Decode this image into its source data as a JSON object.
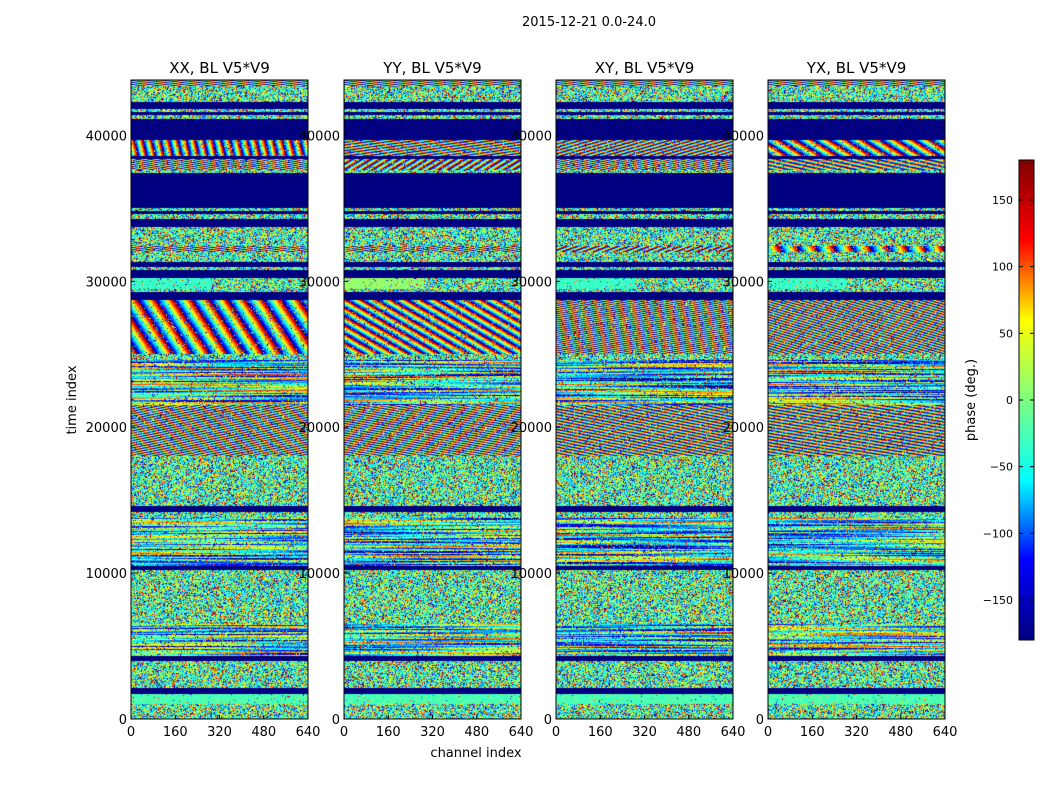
{
  "chart_data": {
    "type": "heatmap",
    "suptitle": "2015-12-21 0.0-24.0",
    "xlabel": "channel index",
    "ylabel": "time index",
    "xlim": [
      0,
      640
    ],
    "ylim": [
      0,
      43800
    ],
    "x_ticks": [
      0,
      160,
      320,
      480,
      640
    ],
    "y_ticks": [
      0,
      10000,
      20000,
      30000,
      40000
    ],
    "panels": [
      {
        "title": "XX, BL V5*V9"
      },
      {
        "title": "YY, BL V5*V9"
      },
      {
        "title": "XY, BL V5*V9"
      },
      {
        "title": "YX, BL V5*V9"
      }
    ],
    "colorbar": {
      "label": "phase (deg.)",
      "range": [
        -180,
        180
      ],
      "ticks": [
        -150,
        -100,
        -50,
        0,
        50,
        100,
        150
      ],
      "tick_labels": [
        "−150",
        "−100",
        "−50",
        "0",
        "50",
        "100",
        "150"
      ],
      "colormap": "jet",
      "stops": [
        "#000080",
        "#0000ff",
        "#00ffff",
        "#7fff7f",
        "#ffff00",
        "#ff0000",
        "#800000"
      ]
    },
    "row_bands": [
      {
        "from": 43400,
        "to": 43800,
        "pattern": "wrap"
      },
      {
        "from": 42300,
        "to": 43400,
        "pattern": "noise"
      },
      {
        "from": 41800,
        "to": 42300,
        "pattern": "flag"
      },
      {
        "from": 41600,
        "to": 41800,
        "pattern": "noise"
      },
      {
        "from": 41400,
        "to": 41600,
        "pattern": "flag"
      },
      {
        "from": 41100,
        "to": 41400,
        "pattern": "noise"
      },
      {
        "from": 39700,
        "to": 41100,
        "pattern": "flag"
      },
      {
        "from": 38600,
        "to": 39700,
        "pattern": "fringe"
      },
      {
        "from": 38400,
        "to": 38600,
        "pattern": "flag"
      },
      {
        "from": 37600,
        "to": 38400,
        "pattern": "fringe"
      },
      {
        "from": 37400,
        "to": 37600,
        "pattern": "noise"
      },
      {
        "from": 35000,
        "to": 37400,
        "pattern": "flag"
      },
      {
        "from": 34800,
        "to": 35000,
        "pattern": "noise"
      },
      {
        "from": 34600,
        "to": 34800,
        "pattern": "flag"
      },
      {
        "from": 34300,
        "to": 34600,
        "pattern": "noise"
      },
      {
        "from": 33700,
        "to": 34300,
        "pattern": "flag"
      },
      {
        "from": 32400,
        "to": 33700,
        "pattern": "noise"
      },
      {
        "from": 32000,
        "to": 32400,
        "pattern": "fringe"
      },
      {
        "from": 31300,
        "to": 32000,
        "pattern": "noise"
      },
      {
        "from": 31000,
        "to": 31300,
        "pattern": "flag"
      },
      {
        "from": 30800,
        "to": 31000,
        "pattern": "noise"
      },
      {
        "from": 30200,
        "to": 30800,
        "pattern": "flag"
      },
      {
        "from": 29500,
        "to": 30200,
        "pattern": "partial"
      },
      {
        "from": 29300,
        "to": 29500,
        "pattern": "noise"
      },
      {
        "from": 28700,
        "to": 29300,
        "pattern": "flag"
      },
      {
        "from": 25000,
        "to": 28700,
        "pattern": "fringe"
      },
      {
        "from": 24600,
        "to": 25000,
        "pattern": "noise"
      },
      {
        "from": 21500,
        "to": 24600,
        "pattern": "stripe"
      },
      {
        "from": 18000,
        "to": 21500,
        "pattern": "fringe"
      },
      {
        "from": 14600,
        "to": 18000,
        "pattern": "noise"
      },
      {
        "from": 14200,
        "to": 14600,
        "pattern": "flag"
      },
      {
        "from": 13800,
        "to": 14200,
        "pattern": "noise"
      },
      {
        "from": 10500,
        "to": 13800,
        "pattern": "stripe"
      },
      {
        "from": 10200,
        "to": 10500,
        "pattern": "flag"
      },
      {
        "from": 6500,
        "to": 10200,
        "pattern": "noise"
      },
      {
        "from": 4300,
        "to": 6500,
        "pattern": "stripe"
      },
      {
        "from": 4000,
        "to": 4300,
        "pattern": "flag"
      },
      {
        "from": 2100,
        "to": 4000,
        "pattern": "noise"
      },
      {
        "from": 1700,
        "to": 2100,
        "pattern": "flag"
      },
      {
        "from": 1000,
        "to": 1700,
        "pattern": "green"
      },
      {
        "from": 0,
        "to": 1000,
        "pattern": "noise"
      }
    ]
  }
}
